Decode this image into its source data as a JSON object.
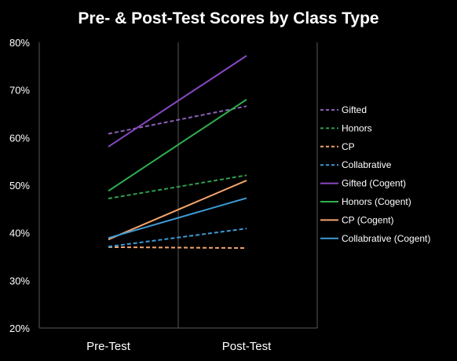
{
  "chart_data": {
    "type": "line",
    "title": "Pre- & Post-Test Scores by Class Type",
    "categories": [
      "Pre-Test",
      "Post-Test"
    ],
    "ylim": [
      20,
      80
    ],
    "yticks": [
      "20%",
      "30%",
      "40%",
      "50%",
      "60%",
      "70%",
      "80%"
    ],
    "grid": "vertical-divider",
    "legend_position": "right",
    "series": [
      {
        "name": "Gifted",
        "values": [
          60.8,
          66.6
        ],
        "color": "#8e5fb5",
        "dash": true
      },
      {
        "name": "Honors",
        "values": [
          47.2,
          52.1
        ],
        "color": "#2f9e4f",
        "dash": true
      },
      {
        "name": "CP",
        "values": [
          37.0,
          36.8
        ],
        "color": "#f2a46b",
        "dash": true
      },
      {
        "name": "Collabrative",
        "values": [
          37.1,
          40.9
        ],
        "color": "#3d9bd6",
        "dash": true
      },
      {
        "name": "Gifted (Cogent)",
        "values": [
          58.1,
          77.2
        ],
        "color": "#8848c4",
        "dash": false
      },
      {
        "name": "Honors (Cogent)",
        "values": [
          48.8,
          68.0
        ],
        "color": "#2fb04f",
        "dash": false
      },
      {
        "name": "CP (Cogent)",
        "values": [
          38.6,
          51.0
        ],
        "color": "#f2a46b",
        "dash": false
      },
      {
        "name": "Collabrative (Cogent)",
        "values": [
          38.9,
          47.3
        ],
        "color": "#3d9bd6",
        "dash": false
      }
    ]
  }
}
